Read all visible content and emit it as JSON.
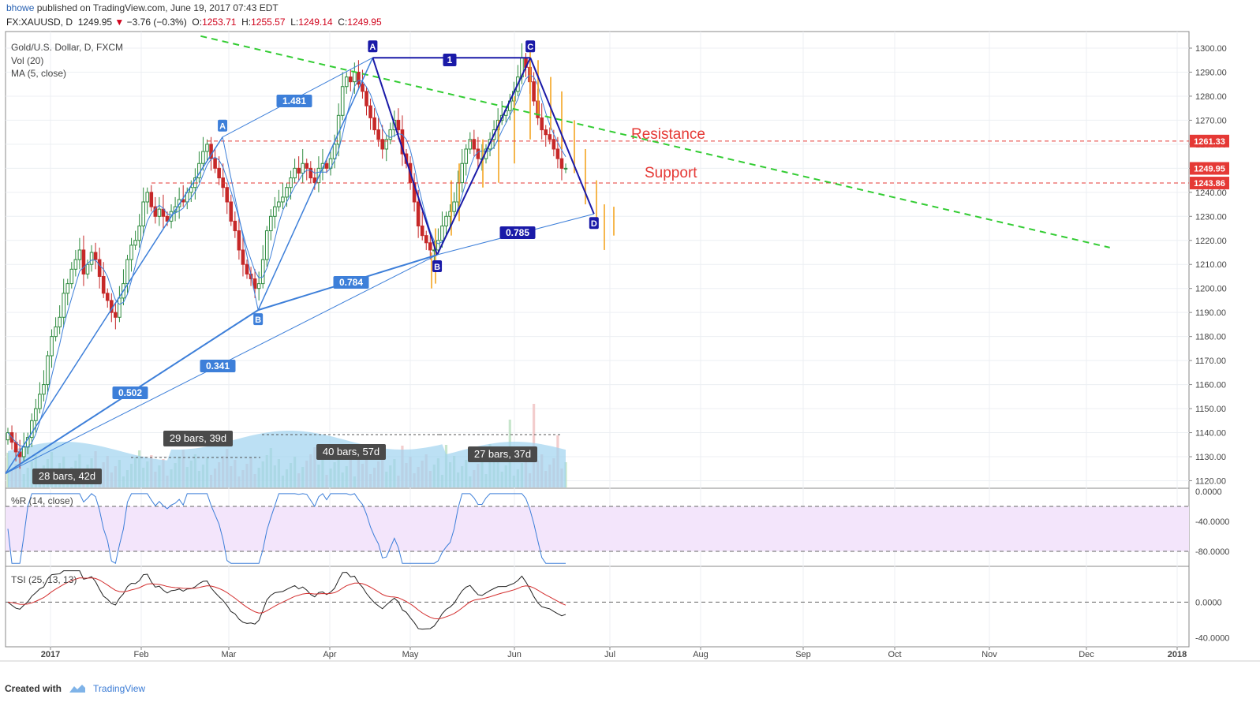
{
  "header": {
    "user": "bhowe",
    "published_text": "published on TradingView.com, June 19, 2017 07:43 EDT",
    "symbol": "FX:XAUUSD, D",
    "last": "1249.95",
    "change": "−3.76 (−0.3%)",
    "open_label": "O:",
    "open": "1253.71",
    "high_label": "H:",
    "high": "1255.57",
    "low_label": "L:",
    "low": "1249.14",
    "close_label": "C:",
    "close": "1249.95"
  },
  "legend": {
    "instrument": "Gold/U.S. Dollar, D, FXCM",
    "volume": "Vol (20)",
    "ma": "MA (5, close)",
    "wr": "%R (14, close)",
    "tsi": "TSI (25, 13, 13)"
  },
  "footer": {
    "created_with": "Created with",
    "brand": "TradingView"
  },
  "colors": {
    "up": "#2e8b3e",
    "down": "#c62828",
    "pattern": "#1a1aa8",
    "fib": "#3d7fd9",
    "trend": "#33cc33",
    "level": "#e53935",
    "projection": "#f5a623"
  },
  "chart_data": {
    "type": "candlestick",
    "price_axis": {
      "range": [
        1115,
        1305
      ],
      "ticks": [
        "1300.00",
        "1290.00",
        "1280.00",
        "1270.00",
        "1260.00",
        "1250.00",
        "1240.00",
        "1230.00",
        "1220.00",
        "1210.00",
        "1200.00",
        "1190.00",
        "1180.00",
        "1170.00",
        "1160.00",
        "1150.00",
        "1140.00",
        "1130.00",
        "1120.00"
      ]
    },
    "time_axis": {
      "ticks": [
        "2017",
        "Feb",
        "Mar",
        "Apr",
        "May",
        "Jun",
        "Jul",
        "Aug",
        "Sep",
        "Oct",
        "Nov",
        "Dec",
        "2018"
      ]
    },
    "wr_axis": {
      "range": [
        -100,
        0
      ],
      "ticks": [
        "0.0000",
        "-40.0000",
        "-80.0000"
      ],
      "band": [
        -80,
        -20
      ]
    },
    "tsi_axis": {
      "range": [
        -50,
        40
      ],
      "ticks": [
        "0.0000",
        "-40.0000"
      ]
    },
    "price_labels": [
      {
        "value": 1261.33,
        "text": "1261.33",
        "color": "#e53935"
      },
      {
        "value": 1249.95,
        "text": "1249.95",
        "color": "#e53935"
      },
      {
        "value": 1243.86,
        "text": "1243.86",
        "color": "#e53935"
      }
    ],
    "levels": [
      {
        "name": "Resistance",
        "value": 1261.33
      },
      {
        "name": "Support",
        "value": 1243.86
      }
    ],
    "pattern_points": [
      {
        "label": "A",
        "date": "2017-04-17",
        "price": 1296
      },
      {
        "label": "B",
        "date": "2017-05-09",
        "price": 1214
      },
      {
        "label": "C",
        "date": "2017-06-06",
        "price": 1296
      },
      {
        "label": "D",
        "date": "2017-06-26",
        "price": 1231
      }
    ],
    "pattern_ratios": [
      "1",
      "0.785"
    ],
    "fib_points": [
      {
        "label": "A",
        "date": "2017-02-27",
        "price": 1263
      },
      {
        "label": "B",
        "date": "2017-03-10",
        "price": 1191
      }
    ],
    "fib_ratios": [
      "1.481",
      "0.784",
      "0.341",
      "0.502"
    ],
    "range_labels": [
      "28 bars, 42d",
      "29 bars, 39d",
      "40 bars, 57d",
      "27 bars, 37d"
    ],
    "trendline": {
      "from": {
        "date": "2017-02-20",
        "price": 1305
      },
      "to": {
        "date": "2017-12-09",
        "price": 1217
      }
    },
    "close_series": [
      1140,
      1136,
      1132,
      1130,
      1134,
      1138,
      1145,
      1150,
      1156,
      1160,
      1172,
      1180,
      1184,
      1188,
      1198,
      1202,
      1208,
      1212,
      1216,
      1206,
      1210,
      1215,
      1212,
      1205,
      1198,
      1195,
      1190,
      1188,
      1196,
      1202,
      1212,
      1218,
      1220,
      1226,
      1236,
      1240,
      1234,
      1230,
      1233,
      1230,
      1228,
      1232,
      1234,
      1237,
      1236,
      1240,
      1242,
      1246,
      1252,
      1257,
      1260,
      1254,
      1250,
      1246,
      1242,
      1236,
      1228,
      1224,
      1216,
      1210,
      1206,
      1204,
      1200,
      1202,
      1212,
      1224,
      1230,
      1234,
      1236,
      1238,
      1242,
      1246,
      1250,
      1248,
      1252,
      1250,
      1246,
      1244,
      1250,
      1252,
      1250,
      1254,
      1260,
      1272,
      1284,
      1288,
      1286,
      1290,
      1285,
      1282,
      1276,
      1271,
      1266,
      1262,
      1258,
      1262,
      1266,
      1270,
      1266,
      1256,
      1252,
      1244,
      1236,
      1226,
      1222,
      1219,
      1216,
      1216,
      1220,
      1226,
      1230,
      1232,
      1236,
      1244,
      1252,
      1258,
      1262,
      1258,
      1254,
      1254,
      1258,
      1262,
      1266,
      1270,
      1272,
      1274,
      1278,
      1282,
      1288,
      1296,
      1292,
      1286,
      1278,
      1271,
      1266,
      1264,
      1262,
      1258,
      1254,
      1250,
      1250
    ]
  }
}
